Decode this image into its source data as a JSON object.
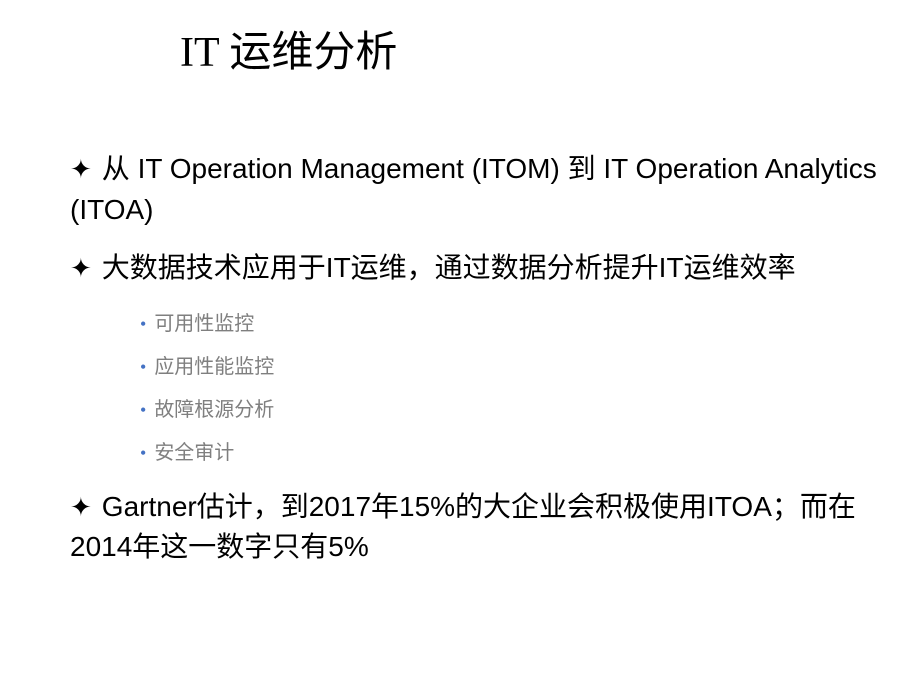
{
  "title": "IT 运维分析",
  "bullets": [
    {
      "text": "从 IT Operation Management (ITOM) 到 IT Operation Analytics (ITOA)"
    },
    {
      "text": "大数据技术应用于IT运维，通过数据分析提升IT运维效率",
      "subs": [
        "可用性监控",
        "应用性能监控",
        "故障根源分析",
        "安全审计"
      ]
    },
    {
      "text": "Gartner估计，到2017年15%的大企业会积极使用ITOA；而在2014年这一数字只有5%"
    }
  ],
  "colors": {
    "title": "#000000",
    "body": "#000000",
    "sub_text": "#7f7f7f",
    "sub_bullet": "#4472c4",
    "background": "#ffffff"
  },
  "typography": {
    "title_fontsize": 42,
    "body_fontsize": 28,
    "sub_fontsize": 20
  },
  "page_marker": ""
}
